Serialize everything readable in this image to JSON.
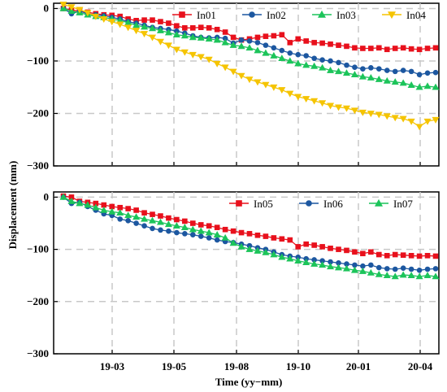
{
  "chart_data": {
    "type": "line",
    "xlabel": "Time (yy−mm)",
    "ylabel": "Displacement (mm)",
    "x_ticks": [
      "19-03",
      "19-05",
      "19-08",
      "19-10",
      "20-01",
      "20-04"
    ],
    "grid": true,
    "panels": [
      {
        "ylim": [
          -300,
          10
        ],
        "y_ticks": [
          0,
          -100,
          -200,
          -300
        ],
        "legend_position": "top",
        "series": [
          {
            "name": "In01",
            "color": "#e8101c",
            "marker": "square",
            "values": [
              0,
              -3,
              -5,
              -7,
              -10,
              -12,
              -13,
              -15,
              -20,
              -23,
              -22,
              -22,
              -25,
              -28,
              -33,
              -37,
              -37,
              -36,
              -37,
              -40,
              -45,
              -55,
              -60,
              -58,
              -55,
              -53,
              -52,
              -50,
              -65,
              -58,
              -62,
              -65,
              -66,
              -68,
              -70,
              -72,
              -75,
              -76,
              -76,
              -75,
              -78,
              -76,
              -75,
              -77,
              -78,
              -76,
              -75
            ]
          },
          {
            "name": "In02",
            "color": "#1c57a0",
            "marker": "circle",
            "values": [
              0,
              -10,
              -5,
              -10,
              -12,
              -14,
              -17,
              -20,
              -25,
              -28,
              -32,
              -36,
              -38,
              -40,
              -43,
              -47,
              -52,
              -55,
              -56,
              -55,
              -57,
              -66,
              -60,
              -62,
              -65,
              -70,
              -75,
              -80,
              -85,
              -88,
              -90,
              -95,
              -98,
              -100,
              -103,
              -108,
              -112,
              -115,
              -113,
              -115,
              -118,
              -120,
              -118,
              -120,
              -126,
              -123,
              -122
            ]
          },
          {
            "name": "In03",
            "color": "#1cc45a",
            "marker": "triangle",
            "values": [
              0,
              -5,
              -8,
              -12,
              -15,
              -17,
              -20,
              -23,
              -27,
              -32,
              -35,
              -38,
              -42,
              -46,
              -50,
              -52,
              -55,
              -56,
              -58,
              -60,
              -65,
              -70,
              -72,
              -75,
              -80,
              -85,
              -90,
              -95,
              -100,
              -105,
              -108,
              -110,
              -113,
              -118,
              -120,
              -123,
              -126,
              -130,
              -132,
              -135,
              -138,
              -140,
              -142,
              -146,
              -150,
              -148,
              -150
            ]
          },
          {
            "name": "In04",
            "color": "#f5c400",
            "marker": "inv-triangle",
            "values": [
              8,
              3,
              -2,
              -8,
              -15,
              -20,
              -25,
              -30,
              -36,
              -42,
              -48,
              -55,
              -63,
              -70,
              -78,
              -83,
              -88,
              -92,
              -97,
              -105,
              -112,
              -120,
              -128,
              -135,
              -140,
              -145,
              -150,
              -155,
              -162,
              -168,
              -172,
              -176,
              -180,
              -185,
              -188,
              -190,
              -194,
              -198,
              -200,
              -202,
              -205,
              -208,
              -210,
              -215,
              -225,
              -215,
              -212
            ]
          }
        ]
      },
      {
        "ylim": [
          -300,
          10
        ],
        "y_ticks": [
          0,
          -100,
          -200,
          -300
        ],
        "legend_position": "top",
        "series": [
          {
            "name": "In05",
            "color": "#e8101c",
            "marker": "square",
            "values": [
              2,
              0,
              -8,
              -10,
              -12,
              -15,
              -18,
              -20,
              -22,
              -25,
              -30,
              -33,
              -36,
              -40,
              -43,
              -46,
              -50,
              -53,
              -55,
              -58,
              -62,
              -65,
              -68,
              -70,
              -73,
              -75,
              -78,
              -80,
              -82,
              -95,
              -90,
              -92,
              -95,
              -98,
              -100,
              -102,
              -105,
              -108,
              -105,
              -110,
              -112,
              -110,
              -111,
              -112,
              -113,
              -112,
              -113
            ]
          },
          {
            "name": "In06",
            "color": "#1c57a0",
            "marker": "circle",
            "values": [
              0,
              -12,
              -10,
              -18,
              -25,
              -32,
              -35,
              -42,
              -45,
              -50,
              -55,
              -60,
              -63,
              -65,
              -68,
              -70,
              -72,
              -75,
              -78,
              -82,
              -85,
              -87,
              -90,
              -93,
              -97,
              -100,
              -105,
              -110,
              -113,
              -115,
              -118,
              -120,
              -122,
              -124,
              -126,
              -128,
              -130,
              -132,
              -130,
              -135,
              -137,
              -138,
              -136,
              -138,
              -140,
              -138,
              -137
            ]
          },
          {
            "name": "In07",
            "color": "#1cc45a",
            "marker": "triangle",
            "values": [
              0,
              -8,
              -12,
              -15,
              -20,
              -25,
              -28,
              -30,
              -35,
              -38,
              -42,
              -45,
              -48,
              -52,
              -55,
              -58,
              -62,
              -65,
              -68,
              -72,
              -78,
              -88,
              -95,
              -100,
              -103,
              -106,
              -110,
              -115,
              -118,
              -122,
              -125,
              -128,
              -130,
              -133,
              -135,
              -137,
              -140,
              -142,
              -145,
              -148,
              -150,
              -152,
              -149,
              -150,
              -152,
              -150,
              -152
            ]
          }
        ]
      }
    ]
  }
}
